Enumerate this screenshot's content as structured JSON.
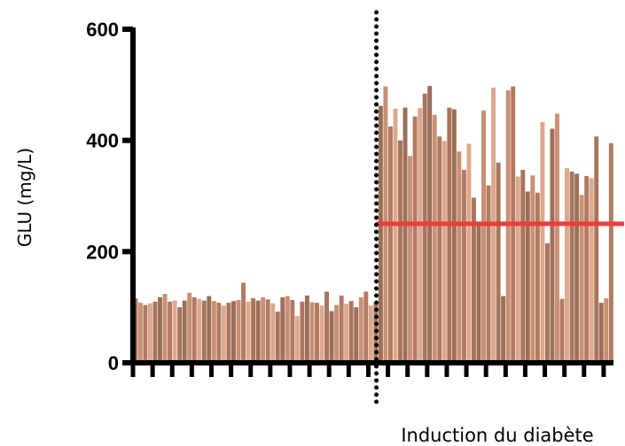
{
  "chart_data": {
    "type": "bar",
    "ylabel": "GLU (mg/L)",
    "xlabel": "",
    "ylim": [
      0,
      600
    ],
    "yticks": [
      0,
      200,
      400,
      600
    ],
    "grid": false,
    "annotation_label": "Induction du diabète",
    "induction_after_index": 49,
    "threshold": 250,
    "threshold_color": "#ef3b3b",
    "induction_line_color": "#000000",
    "bar_colors": [
      "#9c6f58",
      "#c98f74",
      "#b27a61",
      "#dca88c",
      "#a8755c"
    ],
    "values": [
      116,
      108,
      104,
      107,
      110,
      118,
      124,
      110,
      112,
      100,
      112,
      126,
      118,
      115,
      112,
      120,
      111,
      108,
      103,
      108,
      111,
      113,
      144,
      110,
      116,
      112,
      118,
      114,
      107,
      92,
      118,
      120,
      113,
      84,
      110,
      121,
      109,
      108,
      103,
      128,
      93,
      104,
      121,
      106,
      111,
      100,
      118,
      128,
      103,
      108,
      462,
      497,
      425,
      457,
      400,
      459,
      372,
      443,
      458,
      484,
      498,
      446,
      407,
      399,
      459,
      456,
      380,
      347,
      394,
      297,
      247,
      454,
      319,
      495,
      360,
      120,
      490,
      497,
      335,
      347,
      308,
      337,
      306,
      433,
      215,
      421,
      448,
      115,
      350,
      344,
      340,
      302,
      336,
      332,
      407,
      108,
      116,
      395
    ]
  }
}
